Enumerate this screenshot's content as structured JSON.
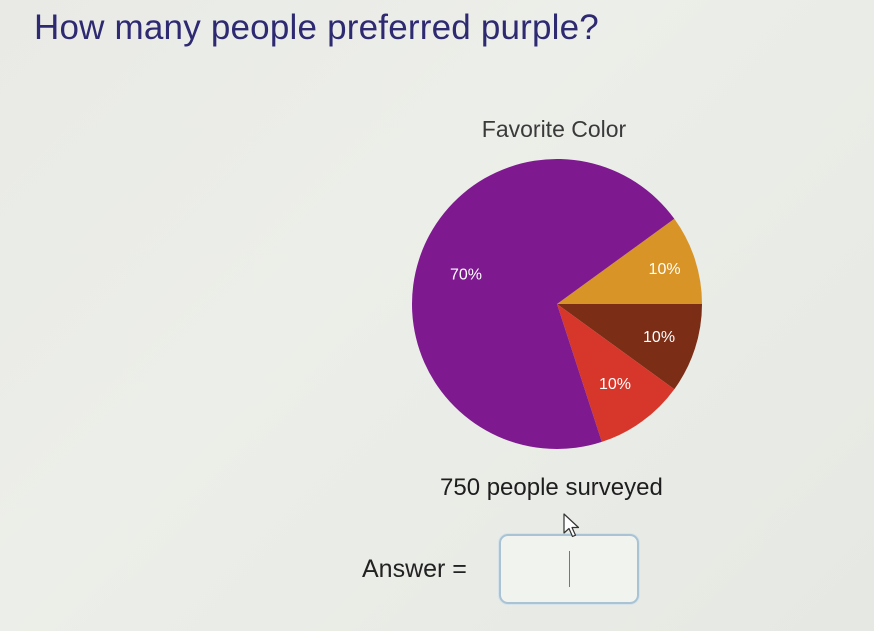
{
  "question": {
    "text": "How many people preferred purple?"
  },
  "chart_data": {
    "type": "pie",
    "title": "Favorite Color",
    "slices": [
      {
        "label": "10%",
        "value": 10,
        "color": "#d89426"
      },
      {
        "label": "10%",
        "value": 10,
        "color": "#7b2d16"
      },
      {
        "label": "10%",
        "value": 10,
        "color": "#d7372b"
      },
      {
        "label": "70%",
        "value": 70,
        "color": "#7e1990"
      }
    ]
  },
  "survey": {
    "text": "750 people surveyed"
  },
  "answer": {
    "label": "Answer =",
    "value": ""
  },
  "icons": {
    "pointer": "mouse-pointer-icon"
  }
}
